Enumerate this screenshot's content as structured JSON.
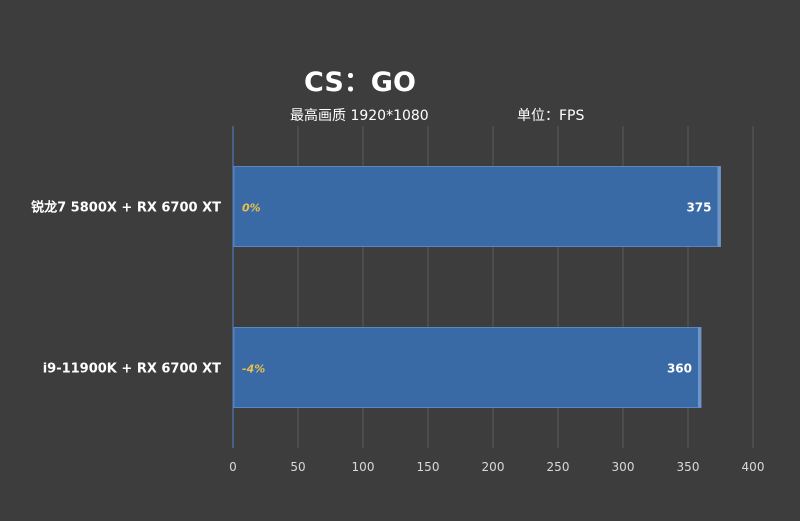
{
  "chart_data": {
    "type": "bar",
    "orientation": "horizontal",
    "title": "CS：GO",
    "subtitle_left": "最高画质 1920*1080",
    "subtitle_right": "单位：FPS",
    "categories": [
      "锐龙7 5800X + RX 6700 XT",
      "i9-11900K + RX 6700 XT"
    ],
    "values": [
      375,
      360
    ],
    "percent_labels": [
      "0%",
      "-4%"
    ],
    "xlim": [
      0,
      400
    ],
    "xticks": [
      0,
      50,
      100,
      150,
      200,
      250,
      300,
      350,
      400
    ],
    "grid": true,
    "bar_color": "#3a6aa6",
    "percent_color": "#e6c04a"
  }
}
